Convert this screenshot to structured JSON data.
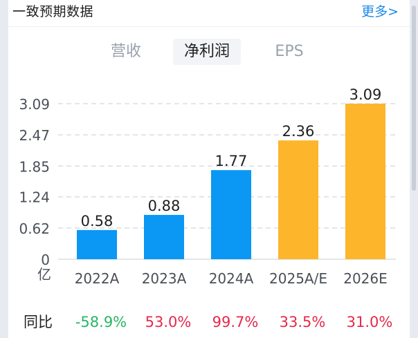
{
  "header": {
    "title": "一致预期数据",
    "more_label": "更多>"
  },
  "tabs": [
    {
      "label": "营收",
      "active": false
    },
    {
      "label": "净利润",
      "active": true
    },
    {
      "label": "EPS",
      "active": false
    }
  ],
  "colors": {
    "actual": "#0b97f4",
    "estimate": "#fdb52b",
    "positive": "#e5294b",
    "negative": "#27b664",
    "link": "#1e88e5"
  },
  "chart_data": {
    "type": "bar",
    "title": "净利润",
    "unit_label": "亿",
    "categories": [
      "2022A",
      "2023A",
      "2024A",
      "2025A/E",
      "2026E"
    ],
    "values": [
      0.58,
      0.88,
      1.77,
      2.36,
      3.09
    ],
    "value_labels": [
      "0.58",
      "0.88",
      "1.77",
      "2.36",
      "3.09"
    ],
    "kinds": [
      "actual",
      "actual",
      "actual",
      "estimate",
      "estimate"
    ],
    "yticks": [
      0,
      0.62,
      1.24,
      1.85,
      2.47,
      3.09
    ],
    "ytick_labels": [
      "0",
      "0.62",
      "1.24",
      "1.85",
      "2.47",
      "3.09"
    ],
    "ylim": [
      0,
      3.09
    ],
    "grid": true
  },
  "yoy": {
    "label": "同比",
    "values": [
      "-58.9%",
      "53.0%",
      "99.7%",
      "33.5%",
      "31.0%"
    ],
    "directions": [
      "down",
      "up",
      "up",
      "up",
      "up"
    ]
  }
}
